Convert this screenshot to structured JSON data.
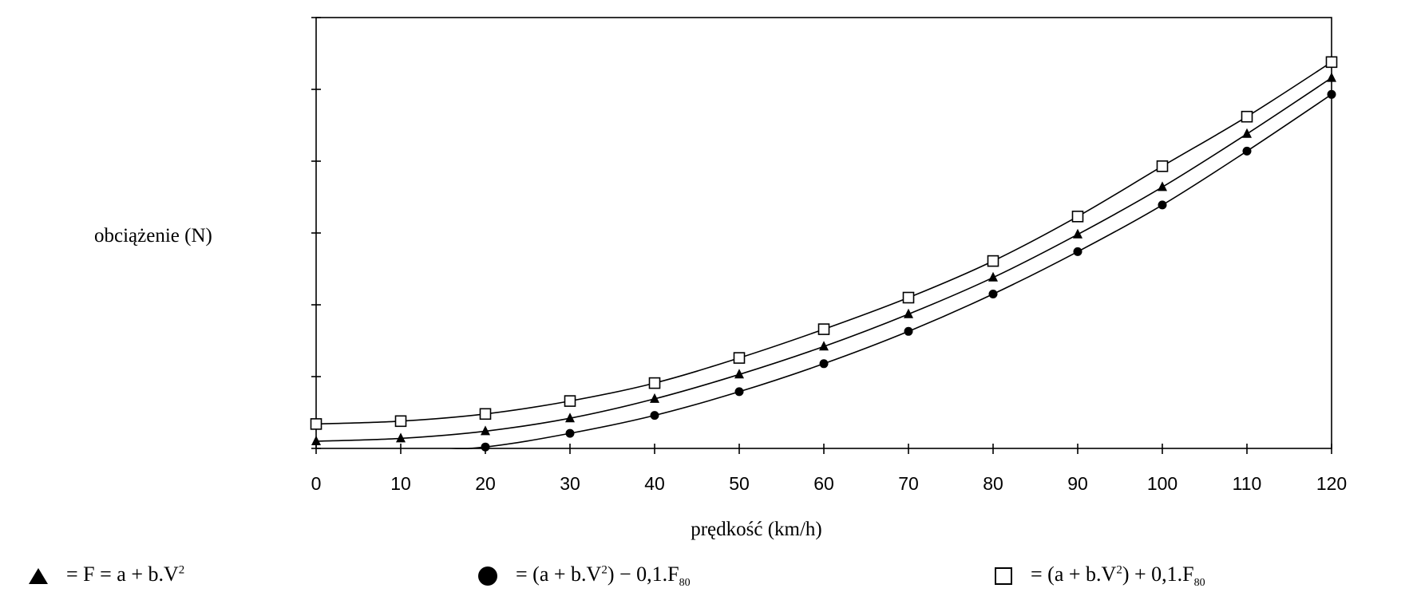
{
  "chart_data": {
    "type": "line",
    "title": "",
    "xlabel": "prędkość (km/h)",
    "ylabel": "obciążenie (N)",
    "x": [
      0,
      10,
      20,
      30,
      40,
      50,
      60,
      70,
      80,
      90,
      100,
      110,
      120
    ],
    "xlim": [
      0,
      120
    ],
    "ylim": [
      0,
      6
    ],
    "y_tick_count": 7,
    "grid": false,
    "series": [
      {
        "name": "▲ = F = a + b.V²",
        "marker": "triangle",
        "values": [
          0.1,
          0.14,
          0.24,
          0.42,
          0.69,
          1.03,
          1.42,
          1.87,
          2.38,
          2.98,
          3.64,
          4.38,
          5.16
        ]
      },
      {
        "name": "● = (a + b.V²) − 0,1.F80",
        "marker": "circle",
        "values": [
          -0.08,
          -0.05,
          0.02,
          0.21,
          0.46,
          0.79,
          1.18,
          1.63,
          2.15,
          2.74,
          3.39,
          4.14,
          4.93
        ]
      },
      {
        "name": "□ = (a + b.V²) + 0,1.F80",
        "marker": "square",
        "values": [
          0.34,
          0.38,
          0.48,
          0.66,
          0.91,
          1.26,
          1.66,
          2.1,
          2.61,
          3.23,
          3.93,
          4.62,
          5.38
        ]
      }
    ]
  },
  "legend": {
    "triangle": {
      "prefix": "=  F  =  a  +  b.V",
      "sup": "2",
      "suffix": ""
    },
    "circle": {
      "prefix": "=  (a  +  b.V",
      "sup": "2",
      "mid": ")  −  0,1.F",
      "sub": "80"
    },
    "square": {
      "prefix": "=  (a  +  b.V",
      "sup": "2",
      "mid": ")  +  0,1.F",
      "sub": "80"
    }
  }
}
